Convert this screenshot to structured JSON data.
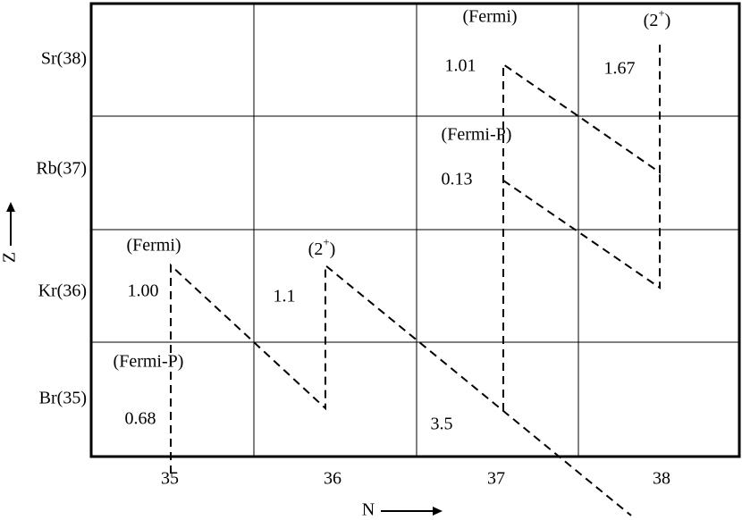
{
  "row_labels": [
    "Sr(38)",
    "Rb(37)",
    "Kr(36)",
    "Br(35)"
  ],
  "column_labels": [
    "35",
    "36",
    "37",
    "38"
  ],
  "axis_labels": {
    "x": "N",
    "y": "Z"
  },
  "annotations": [
    {
      "label": "(Fermi)",
      "value": "1.01"
    },
    {
      "pre": "(2",
      "sup": "+",
      "post": ")",
      "value": "1.67"
    },
    {
      "label": "(Fermi-P)",
      "value": "0.13"
    },
    {
      "label": "(Fermi)",
      "value": "1.00"
    },
    {
      "pre": "(2",
      "sup": "+",
      "post": ")",
      "value": "1.1"
    },
    {
      "label": "(Fermi-P)",
      "value": "0.68"
    },
    {
      "value": "3.5"
    }
  ]
}
